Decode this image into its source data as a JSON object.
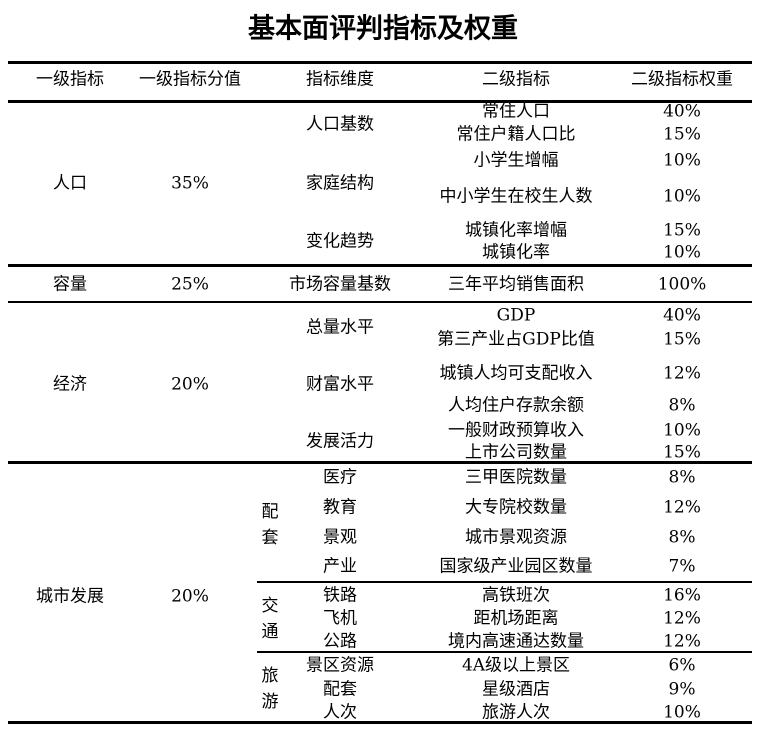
{
  "title": "基本面评判指标及权重",
  "headers": [
    "一级指标",
    "一级指标分值",
    "指标维度",
    "二级指标",
    "二级指标权重"
  ],
  "groups": [
    {
      "name": "人口",
      "score": "35%",
      "dimensions": [
        "人口基数",
        "家庭结构",
        "变化趋势"
      ],
      "items": [
        {
          "name": "常住人口",
          "weight": "40%"
        },
        {
          "name": "常住户籍人口比",
          "weight": "15%"
        },
        {
          "name": "小学生增幅",
          "weight": "10%"
        },
        {
          "name": "中小学生在校生人数",
          "weight": "10%"
        },
        {
          "name": "城镇化率增幅",
          "weight": "15%"
        },
        {
          "name": "城镇化率",
          "weight": "10%"
        }
      ]
    },
    {
      "name": "容量",
      "score": "25%",
      "dimensions": [
        "市场容量基数"
      ],
      "items": [
        {
          "name": "三年平均销售面积",
          "weight": "100%"
        }
      ]
    },
    {
      "name": "经济",
      "score": "20%",
      "dimensions": [
        "总量水平",
        "财富水平",
        "发展活力"
      ],
      "items": [
        {
          "name": "GDP",
          "weight": "40%"
        },
        {
          "name": "第三产业占GDP比值",
          "weight": "15%"
        },
        {
          "name": "城镇人均可支配收入",
          "weight": "12%"
        },
        {
          "name": "人均住户存款余额",
          "weight": "8%"
        },
        {
          "name": "一般财政预算收入",
          "weight": "10%"
        },
        {
          "name": "上市公司数量",
          "weight": "15%"
        }
      ]
    },
    {
      "name": "城市发展",
      "score": "20%",
      "subgroups": [
        "配套",
        "交通",
        "旅游"
      ],
      "dimensions": [
        "医疗",
        "教育",
        "景观",
        "产业",
        "铁路",
        "飞机",
        "公路",
        "景区资源",
        "配套",
        "人次"
      ],
      "items": [
        {
          "name": "三甲医院数量",
          "weight": "8%"
        },
        {
          "name": "大专院校数量",
          "weight": "12%"
        },
        {
          "name": "城市景观资源",
          "weight": "8%"
        },
        {
          "name": "国家级产业园区数量",
          "weight": "7%"
        },
        {
          "name": "高铁班次",
          "weight": "16%"
        },
        {
          "name": "距机场距离",
          "weight": "12%"
        },
        {
          "name": "境内高速通达数量",
          "weight": "12%"
        },
        {
          "name": "4A级以上景区",
          "weight": "6%"
        },
        {
          "name": "星级酒店",
          "weight": "9%"
        },
        {
          "name": "旅游人次",
          "weight": "10%"
        }
      ]
    }
  ]
}
